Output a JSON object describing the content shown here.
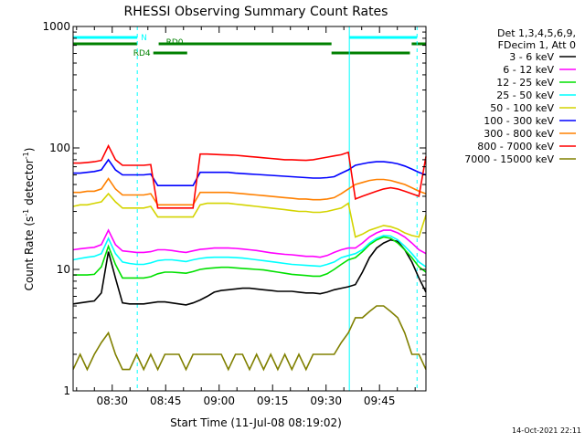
{
  "colors": {
    "background": "#ffffff",
    "axis": "#000000",
    "cyan": "#00ffff",
    "green": "#008000"
  },
  "chart_data": {
    "type": "line",
    "title": "RHESSI Observing Summary Count Rates",
    "xlabel": "Start Time (11-Jul-08 08:19:02)",
    "ylabel": "Count Rate (s",
    "ylabel_sup1": "-1",
    "ylabel_mid": " detector",
    "ylabel_sup2": "-1",
    "ylabel_end": ")",
    "y_scale": "log",
    "ylim": [
      1,
      1000
    ],
    "xlim_minutes": [
      0,
      99
    ],
    "y_ticks": [
      {
        "value": 1,
        "label": "1"
      },
      {
        "value": 10,
        "label": "10"
      },
      {
        "value": 100,
        "label": "100"
      },
      {
        "value": 1000,
        "label": "1000"
      }
    ],
    "x_ticks": [
      {
        "minute": 10.97,
        "label": "08:30"
      },
      {
        "minute": 25.97,
        "label": "08:45"
      },
      {
        "minute": 40.97,
        "label": "09:00"
      },
      {
        "minute": 55.97,
        "label": "09:15"
      },
      {
        "minute": 70.97,
        "label": "09:30"
      },
      {
        "minute": 85.97,
        "label": "09:45"
      }
    ],
    "legend": {
      "placement": "right",
      "header": [
        "Det 1,3,4,5,6,9,",
        "FDecim 1, Att 0"
      ]
    },
    "series": [
      {
        "name": "3 - 6 keV",
        "color": "#000000",
        "values": [
          5.2,
          5.3,
          5.4,
          5.5,
          6.4,
          14.0,
          8.5,
          5.3,
          5.2,
          5.2,
          5.2,
          5.3,
          5.4,
          5.4,
          5.3,
          5.2,
          5.1,
          5.3,
          5.6,
          6.0,
          6.5,
          6.7,
          6.8,
          6.9,
          7.0,
          7.0,
          6.9,
          6.8,
          6.7,
          6.6,
          6.6,
          6.6,
          6.5,
          6.4,
          6.4,
          6.3,
          6.5,
          6.8,
          7.0,
          7.2,
          7.5,
          9.5,
          12.5,
          15.0,
          16.5,
          17.5,
          17.0,
          14.5,
          11.5,
          8.5,
          6.5
        ]
      },
      {
        "name": "6 - 12 keV",
        "color": "#ff00ff",
        "values": [
          14.5,
          14.8,
          15.0,
          15.2,
          16.0,
          21.0,
          16.0,
          14.2,
          14.0,
          13.8,
          13.8,
          14.0,
          14.5,
          14.5,
          14.3,
          14.0,
          13.8,
          14.2,
          14.6,
          14.8,
          15.0,
          15.0,
          15.0,
          14.9,
          14.7,
          14.5,
          14.3,
          14.0,
          13.7,
          13.5,
          13.3,
          13.2,
          13.0,
          12.8,
          12.8,
          12.6,
          13.0,
          13.8,
          14.5,
          15.0,
          15.0,
          16.5,
          18.5,
          20.0,
          21.0,
          21.0,
          20.0,
          18.5,
          16.5,
          14.5,
          13.5
        ]
      },
      {
        "name": "12 - 25 keV",
        "color": "#00e000",
        "values": [
          9.0,
          9.0,
          9.0,
          9.1,
          10.5,
          15.5,
          11.0,
          8.5,
          8.5,
          8.5,
          8.5,
          8.7,
          9.2,
          9.5,
          9.5,
          9.4,
          9.3,
          9.6,
          10.0,
          10.2,
          10.3,
          10.4,
          10.4,
          10.3,
          10.2,
          10.1,
          10.0,
          9.9,
          9.7,
          9.5,
          9.3,
          9.1,
          9.0,
          8.9,
          8.8,
          8.8,
          9.2,
          10.0,
          11.0,
          12.0,
          12.5,
          14.0,
          16.0,
          17.5,
          18.5,
          18.0,
          16.5,
          14.5,
          12.5,
          10.5,
          9.5
        ]
      },
      {
        "name": "25 - 50 keV",
        "color": "#00ffff",
        "values": [
          12.0,
          12.3,
          12.6,
          12.8,
          13.5,
          18.0,
          13.5,
          11.5,
          11.2,
          11.0,
          11.0,
          11.3,
          11.8,
          12.0,
          12.0,
          11.8,
          11.6,
          12.0,
          12.3,
          12.5,
          12.6,
          12.6,
          12.6,
          12.5,
          12.4,
          12.2,
          12.0,
          11.8,
          11.6,
          11.4,
          11.2,
          11.0,
          10.9,
          10.8,
          10.7,
          10.6,
          11.0,
          11.5,
          12.5,
          13.0,
          13.5,
          14.5,
          16.5,
          18.0,
          19.0,
          18.8,
          17.5,
          15.5,
          13.5,
          11.5,
          10.5
        ]
      },
      {
        "name": "50 - 100 keV",
        "color": "#d4d400",
        "values": [
          33,
          34,
          34,
          35,
          36,
          42,
          36,
          32,
          32,
          32,
          32,
          33,
          27,
          27,
          27,
          27,
          27,
          27,
          34,
          35,
          35,
          35,
          35,
          34.5,
          34,
          33.5,
          33,
          32.5,
          32,
          31.5,
          31,
          30.5,
          30,
          30,
          29.5,
          29.5,
          30,
          31,
          32,
          35,
          18.5,
          19.5,
          21,
          22,
          23,
          22.5,
          21.5,
          20,
          19,
          18.5,
          28
        ]
      },
      {
        "name": "100 - 300 keV",
        "color": "#0000ff",
        "values": [
          62,
          62,
          63,
          64,
          66,
          80,
          66,
          60,
          60,
          60,
          60,
          61,
          49,
          49,
          49,
          49,
          49,
          49,
          63,
          63,
          63,
          63,
          63,
          62,
          61.5,
          61,
          60.5,
          60,
          59.5,
          59,
          58.5,
          58,
          57.5,
          57,
          56.5,
          56.5,
          57,
          58,
          62,
          66,
          72,
          74,
          76,
          77,
          77,
          76,
          74,
          71,
          67,
          63,
          60
        ]
      },
      {
        "name": "300 - 800 keV",
        "color": "#ff8000",
        "values": [
          43,
          43,
          44,
          44,
          46,
          56,
          46,
          41,
          41,
          41,
          41,
          42,
          34,
          34,
          34,
          34,
          34,
          34,
          43,
          43,
          43,
          43,
          43,
          42.5,
          42,
          41.5,
          41,
          40.5,
          40,
          39.5,
          39,
          38.5,
          38,
          38,
          37.5,
          37.5,
          38,
          39,
          42,
          46,
          50,
          52,
          54,
          55,
          55,
          54,
          52,
          50,
          47,
          44,
          42
        ]
      },
      {
        "name": "800 - 7000 keV",
        "color": "#ff0000",
        "values": [
          75,
          75,
          76,
          77,
          79,
          104,
          80,
          72,
          72,
          72,
          72,
          73,
          32,
          32,
          32,
          32,
          32,
          32,
          89,
          89,
          88.5,
          88,
          87.5,
          87,
          86,
          85,
          84,
          83,
          82,
          81,
          80,
          80,
          79.5,
          79,
          80,
          82,
          84,
          86,
          88,
          92,
          38,
          40,
          42,
          44,
          46,
          47,
          46,
          44,
          42,
          40,
          85
        ]
      },
      {
        "name": "7000 - 15000 keV",
        "color": "#808000",
        "values": [
          1.5,
          2.0,
          1.5,
          2.0,
          2.5,
          3.0,
          2.0,
          1.5,
          1.5,
          2.0,
          1.5,
          2.0,
          1.5,
          2.0,
          2.0,
          2.0,
          1.5,
          2.0,
          2.0,
          2.0,
          2.0,
          2.0,
          1.5,
          2.0,
          2.0,
          1.5,
          2.0,
          1.5,
          2.0,
          1.5,
          2.0,
          1.5,
          2.0,
          1.5,
          2.0,
          2.0,
          2.0,
          2.0,
          2.5,
          3.0,
          4.0,
          4.0,
          4.5,
          5.0,
          5.0,
          4.5,
          4.0,
          3.0,
          2.0,
          2.0,
          1.5
        ]
      }
    ],
    "annotations": [
      {
        "label": "N",
        "color": "#00ffff",
        "x_minutes": [
          0,
          18.0
        ]
      },
      {
        "label": "",
        "color": "#00ffff",
        "x_minutes": [
          77.5,
          96.5
        ]
      },
      {
        "label": "RD0",
        "color": "#008000",
        "x_minutes": [
          24.0,
          72.5
        ]
      },
      {
        "label": "",
        "color": "#008000",
        "x_minutes": [
          0,
          18.0
        ]
      },
      {
        "label": "",
        "color": "#008000",
        "x_minutes": [
          95.0,
          99.0
        ]
      },
      {
        "label": "RD4",
        "color": "#008000",
        "x_minutes": [
          22.5,
          32.0
        ]
      },
      {
        "label": "",
        "color": "#008000",
        "x_minutes": [
          72.5,
          94.5
        ]
      }
    ],
    "saa_boundaries_minutes": [
      0,
      18.0,
      77.5,
      96.5
    ],
    "footer_date": "14-Oct-2021 22:11"
  }
}
